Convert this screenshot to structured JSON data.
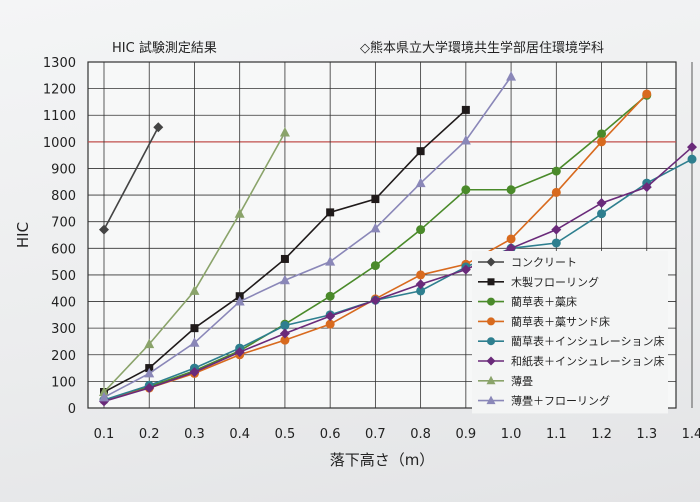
{
  "header": {
    "title": "HIC 試験測定結果",
    "subtitle": "◇熊本県立大学環境共生学部居住環境学科"
  },
  "chart_data": {
    "type": "line",
    "title": "HIC 試験測定結果",
    "xlabel": "落下高さ（m）",
    "ylabel": "HIC",
    "xlim": [
      0.1,
      1.4
    ],
    "ylim": [
      0,
      1300
    ],
    "x_ticks": [
      "0.1",
      "0.2",
      "0.3",
      "0.4",
      "0.5",
      "0.6",
      "0.7",
      "0.8",
      "0.9",
      "1.0",
      "1.1",
      "1.2",
      "1.3",
      "1.4"
    ],
    "y_ticks": [
      "0",
      "100",
      "200",
      "300",
      "400",
      "500",
      "600",
      "700",
      "800",
      "900",
      "1000",
      "1100",
      "1200",
      "1300"
    ],
    "highlight_y": 1000,
    "highlight_color": "#c0504d",
    "grid": true,
    "legend_position": "right",
    "series": [
      {
        "name": "コンクリート",
        "color": "#444444",
        "marker": "diamond",
        "x": [
          0.1,
          0.22
        ],
        "y": [
          670,
          1055
        ]
      },
      {
        "name": "木製フローリング",
        "color": "#1f1a1a",
        "marker": "square",
        "x": [
          0.1,
          0.2,
          0.3,
          0.4,
          0.5,
          0.6,
          0.7,
          0.8,
          0.9
        ],
        "y": [
          60,
          150,
          300,
          420,
          560,
          735,
          785,
          965,
          1120
        ]
      },
      {
        "name": "藺草表＋藁床",
        "color": "#4a8a2a",
        "marker": "circle",
        "x": [
          0.1,
          0.2,
          0.3,
          0.4,
          0.5,
          0.6,
          0.7,
          0.8,
          0.9,
          1.0,
          1.1,
          1.2,
          1.3
        ],
        "y": [
          30,
          80,
          140,
          215,
          315,
          420,
          535,
          670,
          820,
          820,
          890,
          1030,
          1175
        ]
      },
      {
        "name": "藺草表＋藁サンド床",
        "color": "#d86a1e",
        "marker": "circle",
        "x": [
          0.1,
          0.2,
          0.3,
          0.4,
          0.5,
          0.6,
          0.7,
          0.8,
          0.9,
          1.0,
          1.1,
          1.2,
          1.3
        ],
        "y": [
          30,
          75,
          130,
          200,
          255,
          315,
          410,
          500,
          540,
          635,
          810,
          1000,
          1180
        ]
      },
      {
        "name": "藺草表＋インシュレーション床",
        "color": "#2e7f8f",
        "marker": "circle",
        "x": [
          0.1,
          0.2,
          0.3,
          0.4,
          0.5,
          0.6,
          0.7,
          0.8,
          0.9,
          1.0,
          1.1,
          1.2,
          1.3,
          1.4
        ],
        "y": [
          30,
          85,
          150,
          225,
          310,
          350,
          405,
          440,
          530,
          600,
          620,
          730,
          845,
          935
        ]
      },
      {
        "name": "和紙表＋インシュレーション床",
        "color": "#6a2a7a",
        "marker": "diamond",
        "x": [
          0.1,
          0.2,
          0.3,
          0.4,
          0.5,
          0.6,
          0.7,
          0.8,
          0.9,
          1.0,
          1.1,
          1.2,
          1.3,
          1.4
        ],
        "y": [
          25,
          75,
          135,
          210,
          280,
          345,
          405,
          465,
          520,
          600,
          670,
          770,
          830,
          980
        ]
      },
      {
        "name": "薄畳",
        "color": "#8aa36a",
        "marker": "triangle",
        "x": [
          0.1,
          0.2,
          0.3,
          0.4,
          0.5
        ],
        "y": [
          60,
          240,
          440,
          730,
          1035
        ]
      },
      {
        "name": "薄畳＋フローリング",
        "color": "#8a87b8",
        "marker": "triangle",
        "x": [
          0.1,
          0.2,
          0.3,
          0.4,
          0.5,
          0.6,
          0.7,
          0.8,
          0.9,
          1.0
        ],
        "y": [
          40,
          130,
          245,
          400,
          480,
          550,
          675,
          845,
          1005,
          1245
        ]
      }
    ]
  }
}
